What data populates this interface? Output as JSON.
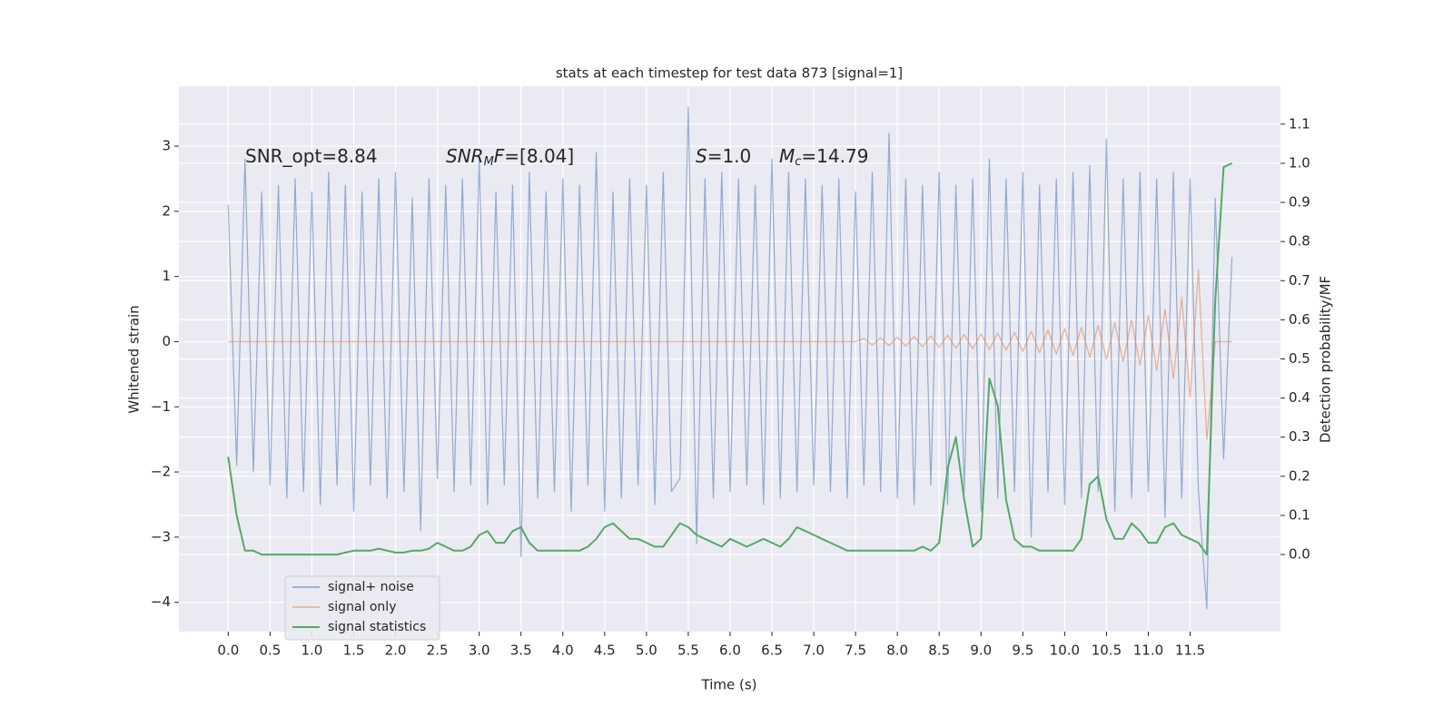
{
  "chart_data": {
    "type": "line",
    "title": "stats at each timestep for test data 873 [signal=1]",
    "xlabel": "Time (s)",
    "ylabel": "Whitened strain",
    "y2label": "Detection probability/MF",
    "annotations": [
      [
        "SNR_opt=8.84"
      ],
      [
        "SNR",
        "M",
        "F=[8.04]"
      ],
      [
        "S",
        "=1.0"
      ],
      [
        "M",
        "c",
        "=14.79"
      ]
    ],
    "x": [
      0,
      0.1,
      0.2,
      0.3,
      0.4,
      0.5,
      0.6,
      0.7,
      0.8,
      0.9,
      1,
      1.1,
      1.2,
      1.3,
      1.4,
      1.5,
      1.6,
      1.7,
      1.8,
      1.9,
      2,
      2.1,
      2.2,
      2.3,
      2.4,
      2.5,
      2.6,
      2.7,
      2.8,
      2.9,
      3,
      3.1,
      3.2,
      3.3,
      3.4,
      3.5,
      3.6,
      3.7,
      3.8,
      3.9,
      4,
      4.1,
      4.2,
      4.3,
      4.4,
      4.5,
      4.6,
      4.7,
      4.8,
      4.9,
      5,
      5.1,
      5.2,
      5.3,
      5.4,
      5.5,
      5.6,
      5.7,
      5.8,
      5.9,
      6,
      6.1,
      6.2,
      6.3,
      6.4,
      6.5,
      6.6,
      6.7,
      6.8,
      6.9,
      7,
      7.1,
      7.2,
      7.3,
      7.4,
      7.5,
      7.6,
      7.7,
      7.8,
      7.9,
      8,
      8.1,
      8.2,
      8.3,
      8.4,
      8.5,
      8.6,
      8.7,
      8.8,
      8.9,
      9,
      9.1,
      9.2,
      9.3,
      9.4,
      9.5,
      9.6,
      9.7,
      9.8,
      9.9,
      10,
      10.1,
      10.2,
      10.3,
      10.4,
      10.5,
      10.6,
      10.7,
      10.8,
      10.9,
      11,
      11.1,
      11.2,
      11.3,
      11.4,
      11.5,
      11.6,
      11.7,
      11.8,
      11.9,
      12
    ],
    "series": [
      {
        "name": "signal+ noise",
        "color": "#4c72b0",
        "axis": "y",
        "values": [
          2.1,
          -1.9,
          2.8,
          -2.0,
          2.3,
          -2.2,
          2.4,
          -2.4,
          2.5,
          -2.3,
          2.3,
          -2.5,
          2.6,
          -2.2,
          2.4,
          -2.6,
          2.3,
          -2.2,
          2.5,
          -2.4,
          2.6,
          -2.3,
          2.2,
          -2.9,
          2.5,
          -2.1,
          2.4,
          -2.3,
          2.5,
          -2.2,
          2.8,
          -2.5,
          2.3,
          -2.2,
          2.4,
          -3.3,
          2.6,
          -2.4,
          2.3,
          -2.3,
          2.5,
          -2.6,
          2.4,
          -2.2,
          2.9,
          -2.6,
          2.3,
          -2.4,
          2.5,
          -2.2,
          2.4,
          -2.5,
          2.6,
          -2.3,
          -2.1,
          3.6,
          -3.1,
          2.5,
          -2.4,
          2.6,
          -2.3,
          2.5,
          -2.2,
          2.4,
          -2.5,
          2.8,
          -2.4,
          2.6,
          -2.3,
          2.5,
          -2.2,
          2.4,
          -2.3,
          2.5,
          -2.4,
          2.3,
          -2.2,
          2.6,
          -2.3,
          3.2,
          -2.4,
          2.5,
          -2.5,
          2.4,
          -2.2,
          2.6,
          -2.5,
          2.4,
          -2.3,
          2.5,
          -2.6,
          2.8,
          -2.4,
          2.5,
          -2.3,
          2.6,
          -3.0,
          2.4,
          -2.3,
          2.5,
          -2.5,
          2.6,
          -2.4,
          2.7,
          -2.3,
          3.1,
          -2.6,
          2.5,
          -2.4,
          2.6,
          -2.3,
          2.5,
          -2.7,
          2.6,
          -2.4,
          2.5,
          -2.3,
          -4.1,
          2.2,
          -1.8,
          1.3
        ]
      },
      {
        "name": "signal only",
        "color": "#dd8452",
        "axis": "y",
        "values": [
          0,
          0,
          0,
          0,
          0,
          0,
          0,
          0,
          0,
          0,
          0,
          0,
          0,
          0,
          0,
          0,
          0,
          0,
          0,
          0,
          0,
          0,
          0,
          0,
          0,
          0,
          0,
          0,
          0,
          0,
          0,
          0,
          0,
          0,
          0,
          0,
          0,
          0,
          0,
          0,
          0,
          0,
          0,
          0,
          0,
          0,
          0,
          0,
          0,
          0,
          0,
          0,
          0,
          0,
          0,
          0,
          0,
          0,
          0,
          0,
          0,
          0,
          0,
          0,
          0,
          0,
          0,
          0,
          0,
          0,
          0,
          0,
          0,
          0,
          0,
          0,
          0.05,
          -0.05,
          0.06,
          -0.06,
          0.07,
          -0.07,
          0.08,
          -0.08,
          0.09,
          -0.09,
          0.1,
          -0.1,
          0.11,
          -0.11,
          0.12,
          -0.12,
          0.13,
          -0.13,
          0.14,
          -0.15,
          0.16,
          -0.17,
          0.18,
          -0.19,
          0.2,
          -0.21,
          0.22,
          -0.24,
          0.25,
          -0.27,
          0.29,
          -0.31,
          0.33,
          -0.36,
          0.4,
          -0.44,
          0.5,
          -0.57,
          0.68,
          -0.85,
          1.1,
          -1.5,
          0,
          0,
          0
        ]
      },
      {
        "name": "signal statistics",
        "color": "#55a868",
        "axis": "y2",
        "values": [
          0.25,
          0.1,
          0.01,
          0.01,
          0,
          0,
          0,
          0,
          0,
          0,
          0,
          0,
          0,
          0,
          0.005,
          0.01,
          0.01,
          0.01,
          0.015,
          0.01,
          0.005,
          0.005,
          0.01,
          0.01,
          0.015,
          0.03,
          0.02,
          0.01,
          0.01,
          0.02,
          0.05,
          0.06,
          0.03,
          0.03,
          0.06,
          0.07,
          0.03,
          0.01,
          0.01,
          0.01,
          0.01,
          0.01,
          0.01,
          0.02,
          0.04,
          0.07,
          0.08,
          0.06,
          0.04,
          0.04,
          0.03,
          0.02,
          0.02,
          0.05,
          0.08,
          0.07,
          0.05,
          0.04,
          0.03,
          0.02,
          0.04,
          0.03,
          0.02,
          0.03,
          0.04,
          0.03,
          0.02,
          0.04,
          0.07,
          0.06,
          0.05,
          0.04,
          0.03,
          0.02,
          0.01,
          0.01,
          0.01,
          0.01,
          0.01,
          0.01,
          0.01,
          0.01,
          0.01,
          0.02,
          0.01,
          0.03,
          0.22,
          0.3,
          0.14,
          0.02,
          0.04,
          0.45,
          0.38,
          0.14,
          0.04,
          0.02,
          0.02,
          0.01,
          0.01,
          0.01,
          0.01,
          0.01,
          0.04,
          0.18,
          0.2,
          0.09,
          0.04,
          0.04,
          0.08,
          0.06,
          0.03,
          0.03,
          0.07,
          0.08,
          0.05,
          0.04,
          0.03,
          0,
          0.65,
          0.99,
          1.0
        ]
      }
    ],
    "xlim": [
      -0.59,
      12.58
    ],
    "xticks": [
      {
        "value": 0,
        "label": "0.0"
      },
      0.5,
      {
        "value": 1,
        "label": "1.0"
      },
      1.5,
      {
        "value": 2,
        "label": "2.0"
      },
      2.5,
      {
        "value": 3,
        "label": "3.0"
      },
      3.5,
      {
        "value": 4,
        "label": "4.0"
      },
      4.5,
      {
        "value": 5,
        "label": "5.0"
      },
      5.5,
      {
        "value": 6,
        "label": "6.0"
      },
      6.5,
      {
        "value": 7,
        "label": "7.0"
      },
      7.5,
      {
        "value": 8,
        "label": "8.0"
      },
      8.5,
      {
        "value": 9,
        "label": "9.0"
      },
      9.5,
      {
        "value": 10,
        "label": "10.0"
      },
      10.5,
      {
        "value": 11,
        "label": "11.0"
      },
      11.5
    ],
    "ylim": [
      -4.45,
      3.92
    ],
    "yticks": [
      {
        "value": -4,
        "label": "−4"
      },
      {
        "value": -3,
        "label": "−3"
      },
      {
        "value": -2,
        "label": "−2"
      },
      {
        "value": -1,
        "label": "−1"
      },
      0,
      1,
      2,
      3
    ],
    "y2lim": [
      -0.197,
      1.197
    ],
    "y2ticks": [
      {
        "value": 0,
        "label": "0.0"
      },
      0.1,
      0.2,
      0.3,
      0.4,
      0.5,
      0.6,
      0.7,
      0.8,
      0.9,
      {
        "value": 1,
        "label": "1.0"
      },
      1.1
    ],
    "grid": true,
    "legend": "lower left"
  }
}
